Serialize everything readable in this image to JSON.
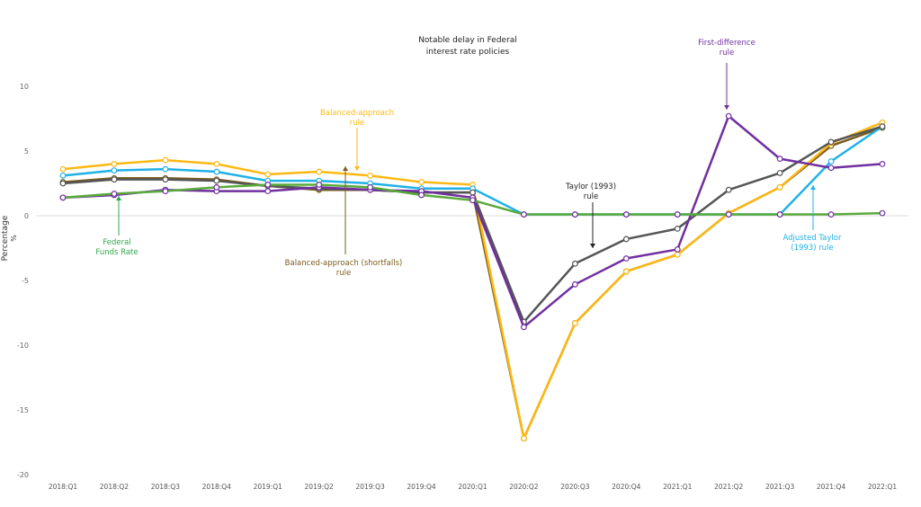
{
  "chart_data": {
    "type": "line",
    "title": "Notable delay in Federal interest rate policies",
    "title_lines": [
      "Notable delay in Federal",
      "interest rate policies"
    ],
    "ylabel": "Percentage",
    "ylabel_unit": "%",
    "ylim": [
      -20,
      10
    ],
    "yticks": [
      10,
      5,
      0,
      -5,
      -10,
      -15,
      -20
    ],
    "grid": false,
    "categories": [
      "2018:Q1",
      "2018:Q2",
      "2018:Q3",
      "2018:Q4",
      "2019:Q1",
      "2019:Q2",
      "2019:Q3",
      "2019:Q4",
      "2020:Q1",
      "2020:Q2",
      "2020:Q3",
      "2020:Q4",
      "2021:Q1",
      "2021:Q2",
      "2021:Q3",
      "2021:Q4",
      "2022:Q1"
    ],
    "series": [
      {
        "name": "Balanced-approach (shortfalls) rule",
        "color": "#7a5c1e",
        "values": [
          2.6,
          2.9,
          2.9,
          2.8,
          2.3,
          2.0,
          2.0,
          1.8,
          1.8,
          -17.2,
          -8.3,
          -4.3,
          -3.0,
          0.2,
          2.2,
          5.4,
          6.8
        ]
      },
      {
        "name": "Balanced-approach rule",
        "color": "#fdb913",
        "values": [
          3.6,
          4.0,
          4.3,
          4.0,
          3.2,
          3.4,
          3.1,
          2.6,
          2.4,
          -17.2,
          -8.3,
          -4.3,
          -3.0,
          0.2,
          2.2,
          5.6,
          7.2
        ]
      },
      {
        "name": "Adjusted Taylor (1993) rule",
        "color": "#1fb1e6",
        "values": [
          3.1,
          3.5,
          3.6,
          3.4,
          2.7,
          2.7,
          2.5,
          2.1,
          2.1,
          0.1,
          0.1,
          0.1,
          0.1,
          0.1,
          0.1,
          4.2,
          6.9
        ]
      },
      {
        "name": "Taylor (1993) rule",
        "color": "#555555",
        "values": [
          2.5,
          2.8,
          2.8,
          2.7,
          2.3,
          2.1,
          2.0,
          1.8,
          1.8,
          -8.2,
          -3.7,
          -1.8,
          -1.0,
          2.0,
          3.3,
          5.7,
          6.9
        ]
      },
      {
        "name": "First-difference rule",
        "color": "#7030a0",
        "values": [
          1.4,
          1.6,
          2.0,
          1.9,
          1.9,
          2.2,
          2.0,
          1.9,
          1.4,
          -8.6,
          -5.3,
          -3.3,
          -2.6,
          7.7,
          4.4,
          3.7,
          4.0
        ]
      },
      {
        "name": "Federal Funds Rate",
        "color": "#5aaa3c",
        "values": [
          1.4,
          1.7,
          1.9,
          2.2,
          2.4,
          2.4,
          2.2,
          1.6,
          1.2,
          0.1,
          0.1,
          0.1,
          0.1,
          0.1,
          0.1,
          0.1,
          0.2
        ]
      }
    ],
    "annotations": [
      {
        "lines": [
          "Balanced-approach",
          "rule"
        ],
        "color": "#fdb913"
      },
      {
        "lines": [
          "Federal",
          "Funds Rate"
        ],
        "color": "#2ea84a"
      },
      {
        "lines": [
          "Balanced-approach (shortfalls)",
          "rule"
        ],
        "color": "#7a5c1e"
      },
      {
        "lines": [
          "Taylor (1993)",
          "rule"
        ],
        "color": "#222222"
      },
      {
        "lines": [
          "First-difference",
          "rule"
        ],
        "color": "#7030a0"
      },
      {
        "lines": [
          "Adjusted Taylor",
          "(1993)  rule"
        ],
        "color": "#1fb1e6"
      }
    ]
  }
}
